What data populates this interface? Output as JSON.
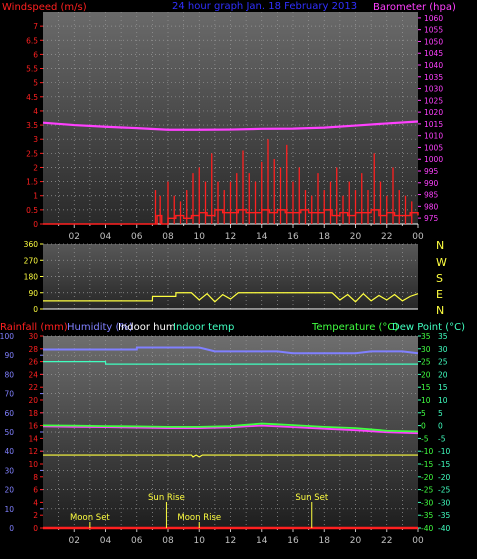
{
  "colors": {
    "wind": "#ff2020",
    "gust": "#ff2020",
    "baro": "#ff40ff",
    "title": "#3030ff",
    "yellow": "#ffff40",
    "cyan": "#40ffc0",
    "humidity": "#8080ff",
    "green": "#40ff40",
    "tick": "#c0c0c0"
  },
  "chart_data": [
    {
      "type": "line",
      "title": "24 hour graph Jan. 18 February 2013",
      "y_left_label": "Windspeed (m/s)",
      "y_right_label": "Barometer (hpa)",
      "y_left_ticks": [
        "0",
        "0.5",
        "1",
        "1.5",
        "2",
        "2.5",
        "3",
        "3.5",
        "4",
        "4.5",
        "5",
        "5.5",
        "6",
        "6.5",
        "7"
      ],
      "y_left_range": [
        0,
        7.5
      ],
      "y_right_ticks": [
        "975",
        "980",
        "985",
        "990",
        "995",
        "1000",
        "1005",
        "1010",
        "1015",
        "1020",
        "1025",
        "1030",
        "1035",
        "1040",
        "1045",
        "1050",
        "1055",
        "1060"
      ],
      "y_right_range": [
        972.5,
        1062.5
      ],
      "x_ticks": [
        "02",
        "04",
        "06",
        "08",
        "10",
        "12",
        "14",
        "16",
        "18",
        "20",
        "22",
        "00"
      ],
      "x_range": [
        0,
        24
      ],
      "series": [
        {
          "key": "barometer",
          "axis": "right",
          "x": [
            0,
            2,
            4,
            6,
            8,
            10,
            12,
            14,
            16,
            18,
            20,
            22,
            24
          ],
          "values": [
            1015.5,
            1014.5,
            1013.8,
            1013.2,
            1012.5,
            1012.5,
            1012.6,
            1012.9,
            1013.0,
            1013.4,
            1014.3,
            1015.2,
            1016.0
          ]
        },
        {
          "key": "wind_avg",
          "axis": "left",
          "x": [
            0,
            7,
            7.3,
            7.6,
            8,
            8.5,
            9,
            9.5,
            10,
            10.5,
            11,
            11.5,
            12,
            12.5,
            13,
            13.5,
            14,
            14.5,
            15,
            15.5,
            16,
            16.5,
            17,
            17.5,
            18,
            18.5,
            19,
            19.5,
            20,
            20.5,
            21,
            21.5,
            22,
            22.5,
            23,
            23.5,
            24
          ],
          "values": [
            0,
            0,
            0.3,
            0,
            0.2,
            0.3,
            0.2,
            0.3,
            0.4,
            0.3,
            0.5,
            0.4,
            0.4,
            0.5,
            0.4,
            0.4,
            0.5,
            0.4,
            0.5,
            0.4,
            0.4,
            0.5,
            0.4,
            0.4,
            0.5,
            0.3,
            0.4,
            0.3,
            0.4,
            0.4,
            0.5,
            0.3,
            0.4,
            0.3,
            0.3,
            0.4,
            0.3
          ]
        },
        {
          "key": "wind_gust",
          "axis": "left",
          "x": [
            7.2,
            7.5,
            8.0,
            8.4,
            8.8,
            9.2,
            9.6,
            10.0,
            10.4,
            10.8,
            11.2,
            11.6,
            12.0,
            12.4,
            12.8,
            13.2,
            13.6,
            14.0,
            14.4,
            14.8,
            15.2,
            15.6,
            16.0,
            16.4,
            16.8,
            17.2,
            17.6,
            18.0,
            18.4,
            18.8,
            19.2,
            19.6,
            20.0,
            20.4,
            20.8,
            21.2,
            21.6,
            22.0,
            22.4,
            22.8,
            23.2,
            23.6
          ],
          "values": [
            1.2,
            1.0,
            1.5,
            1.0,
            0.8,
            1.2,
            1.8,
            2.0,
            1.5,
            2.5,
            1.5,
            1.2,
            1.5,
            1.8,
            2.6,
            1.8,
            1.5,
            2.2,
            3.0,
            2.3,
            2.0,
            2.8,
            1.5,
            2.0,
            1.2,
            1.0,
            1.8,
            1.2,
            1.5,
            2.0,
            1.0,
            1.5,
            1.2,
            1.8,
            1.2,
            2.5,
            1.5,
            1.0,
            2.0,
            1.2,
            1.0,
            0.8
          ]
        }
      ]
    },
    {
      "type": "line",
      "y_ticks": [
        "0",
        "90",
        "180",
        "270",
        "360"
      ],
      "y_range": [
        0,
        360
      ],
      "compass_labels": [
        "N",
        "W",
        "S",
        "E",
        "N"
      ],
      "x_ticks": [
        "02",
        "04",
        "06",
        "08",
        "10",
        "12",
        "14",
        "16",
        "18",
        "20",
        "22",
        "00"
      ],
      "x_range": [
        0,
        24
      ],
      "series": [
        {
          "key": "wind_direction",
          "x": [
            0,
            7,
            7.01,
            8.5,
            8.51,
            9.5,
            10.0,
            10.5,
            11.0,
            11.5,
            12.0,
            12.5,
            13,
            18.5,
            19.0,
            19.5,
            20.0,
            20.5,
            21.0,
            21.5,
            22.0,
            22.5,
            23.0,
            23.5,
            24
          ],
          "values": [
            45,
            45,
            70,
            70,
            90,
            90,
            50,
            85,
            40,
            80,
            55,
            90,
            90,
            90,
            50,
            80,
            40,
            85,
            45,
            75,
            50,
            80,
            45,
            70,
            85
          ]
        }
      ]
    },
    {
      "type": "line",
      "legend_left": [
        "Rainfall (mm)",
        "Humidity (%)",
        "Indoor hum",
        "Indoor temp"
      ],
      "legend_right": [
        "Temperature (°C)",
        "Dew Point (°C)"
      ],
      "y_left_rain_ticks": [
        "0",
        "2",
        "4",
        "6",
        "8",
        "10",
        "12",
        "14",
        "16",
        "18",
        "20",
        "22",
        "24",
        "26",
        "28",
        "30"
      ],
      "y_left_rain_range": [
        0,
        30
      ],
      "y_left_hum_ticks": [
        "0",
        "10",
        "20",
        "30",
        "40",
        "50",
        "60",
        "70",
        "80",
        "90",
        "100"
      ],
      "y_left_hum_range": [
        0,
        100
      ],
      "y_right_temp_ticks": [
        "-40",
        "-35",
        "-30",
        "-25",
        "-20",
        "-15",
        "-10",
        "-5",
        "0",
        "5",
        "10",
        "15",
        "20",
        "25",
        "30",
        "35"
      ],
      "y_right_temp_range": [
        -40,
        35
      ],
      "x_ticks": [
        "02",
        "04",
        "06",
        "08",
        "10",
        "12",
        "14",
        "16",
        "18",
        "20",
        "22",
        "00"
      ],
      "x_range": [
        0,
        24
      ],
      "series": [
        {
          "key": "humidity",
          "axis": "hum",
          "x": [
            0,
            3,
            5,
            6,
            6.01,
            10,
            11,
            13,
            15,
            16,
            18,
            20,
            21,
            23,
            24
          ],
          "values": [
            93,
            93,
            93,
            93,
            94,
            94,
            92,
            92,
            92,
            91,
            91,
            91,
            92,
            92,
            91
          ]
        },
        {
          "key": "indoor_temp",
          "axis": "temp",
          "x": [
            0,
            3,
            4,
            4.01,
            8,
            12,
            16,
            20,
            24
          ],
          "values": [
            25,
            25,
            25,
            24,
            24,
            24,
            24,
            24,
            24
          ]
        },
        {
          "key": "temperature",
          "axis": "temp",
          "x": [
            0,
            2,
            4,
            6,
            8,
            10,
            12,
            13,
            14,
            15,
            16,
            18,
            20,
            22,
            24
          ],
          "values": [
            0.1,
            0.0,
            -0.2,
            -0.3,
            -0.5,
            -0.5,
            -0.2,
            0.3,
            0.8,
            0.5,
            0.2,
            -0.5,
            -1.0,
            -2.0,
            -2.3
          ]
        },
        {
          "key": "dew_point",
          "axis": "temp",
          "x": [
            0,
            2,
            4,
            6,
            8,
            10,
            12,
            13,
            14,
            15,
            16,
            18,
            20,
            22,
            24
          ],
          "values": [
            -0.3,
            -0.5,
            -0.6,
            -0.8,
            -1.0,
            -1.0,
            -0.7,
            -0.3,
            0.0,
            -0.3,
            -0.6,
            -1.2,
            -1.8,
            -2.6,
            -3.0
          ]
        },
        {
          "key": "indoor_hum",
          "axis": "hum",
          "x": [
            0,
            9.5,
            9.6,
            9.8,
            10.0,
            10.2,
            24
          ],
          "values": [
            38,
            38,
            37,
            38,
            37,
            38,
            38
          ]
        },
        {
          "key": "rainfall",
          "axis": "rain",
          "x": [
            0,
            24
          ],
          "values": [
            0,
            0
          ]
        }
      ],
      "annotations": [
        {
          "label": "Moon Set",
          "hour": 3.0
        },
        {
          "label": "Sun Rise",
          "hour": 7.9
        },
        {
          "label": "Moon Rise",
          "hour": 10.0
        },
        {
          "label": "Sun Set",
          "hour": 17.2
        }
      ]
    }
  ]
}
